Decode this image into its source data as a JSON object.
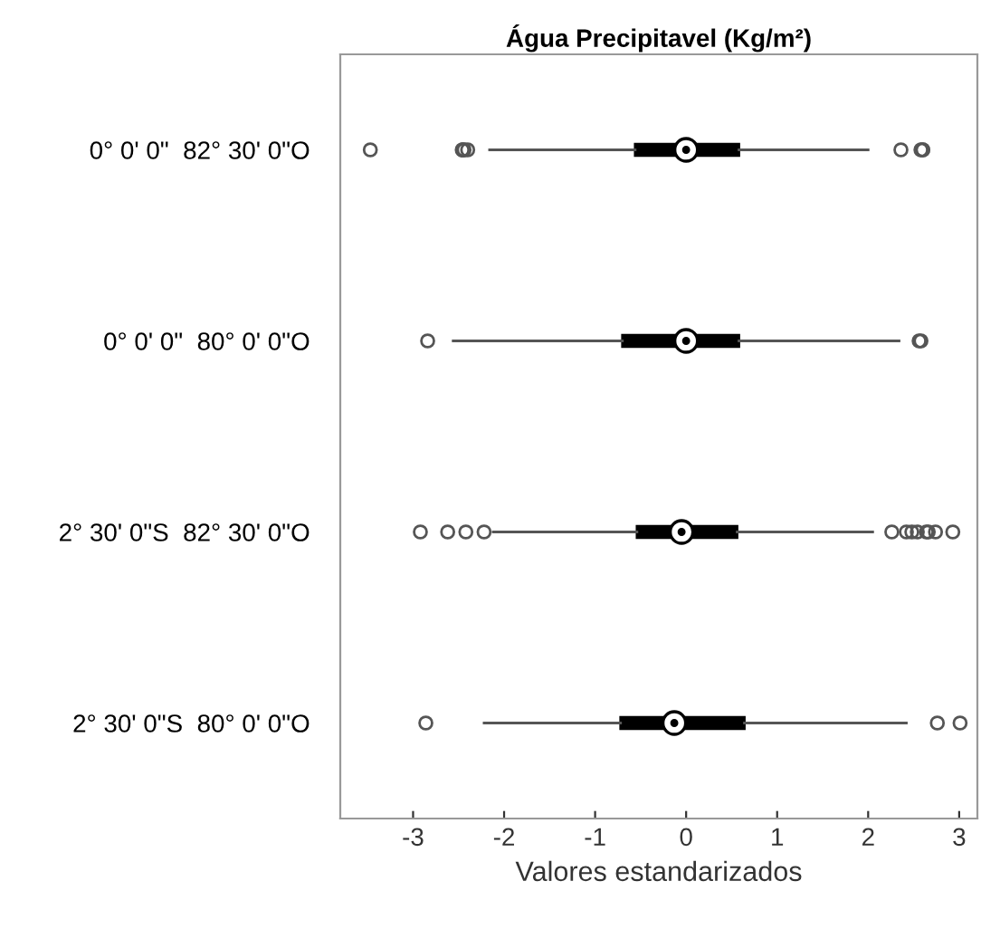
{
  "chart_data": {
    "type": "box",
    "orientation": "horizontal",
    "title": "Água Precipitavel (Kg/m²)",
    "xlabel": "Valores estandarizados",
    "categories": [
      "0° 0' 0\"  82° 30' 0\"O",
      "0° 0' 0\"  80° 0' 0\"O",
      "2° 30' 0\"S  82° 30' 0\"O",
      "2° 30' 0\"S  80° 0' 0\"O"
    ],
    "boxes": [
      {
        "low": -2.16,
        "q1": -0.56,
        "median": 0.0,
        "q3": 0.58,
        "high": 2.0,
        "outliers": [
          -3.47,
          -2.44,
          -2.4,
          -2.46,
          -2.45,
          2.36,
          2.6,
          2.58,
          2.6
        ]
      },
      {
        "low": -2.56,
        "q1": -0.7,
        "median": 0.0,
        "q3": 0.58,
        "high": 2.34,
        "outliers": [
          -2.84,
          2.58,
          2.56
        ]
      },
      {
        "low": -2.12,
        "q1": -0.54,
        "median": -0.05,
        "q3": 0.56,
        "high": 2.05,
        "outliers": [
          -2.92,
          -2.62,
          -2.42,
          -2.22,
          2.26,
          2.42,
          2.54,
          2.64,
          2.74,
          2.48,
          2.93,
          2.66
        ]
      },
      {
        "low": -2.22,
        "q1": -0.72,
        "median": -0.13,
        "q3": 0.64,
        "high": 2.42,
        "outliers": [
          -2.86,
          2.76,
          3.01
        ]
      }
    ],
    "color": "#000000",
    "xlim": [
      -3.8,
      3.2
    ],
    "xticks": [
      {
        "value": -3,
        "label": "-3"
      },
      {
        "value": -2,
        "label": "-2"
      },
      {
        "value": -1,
        "label": "-1"
      },
      0,
      1,
      2,
      3
    ]
  }
}
